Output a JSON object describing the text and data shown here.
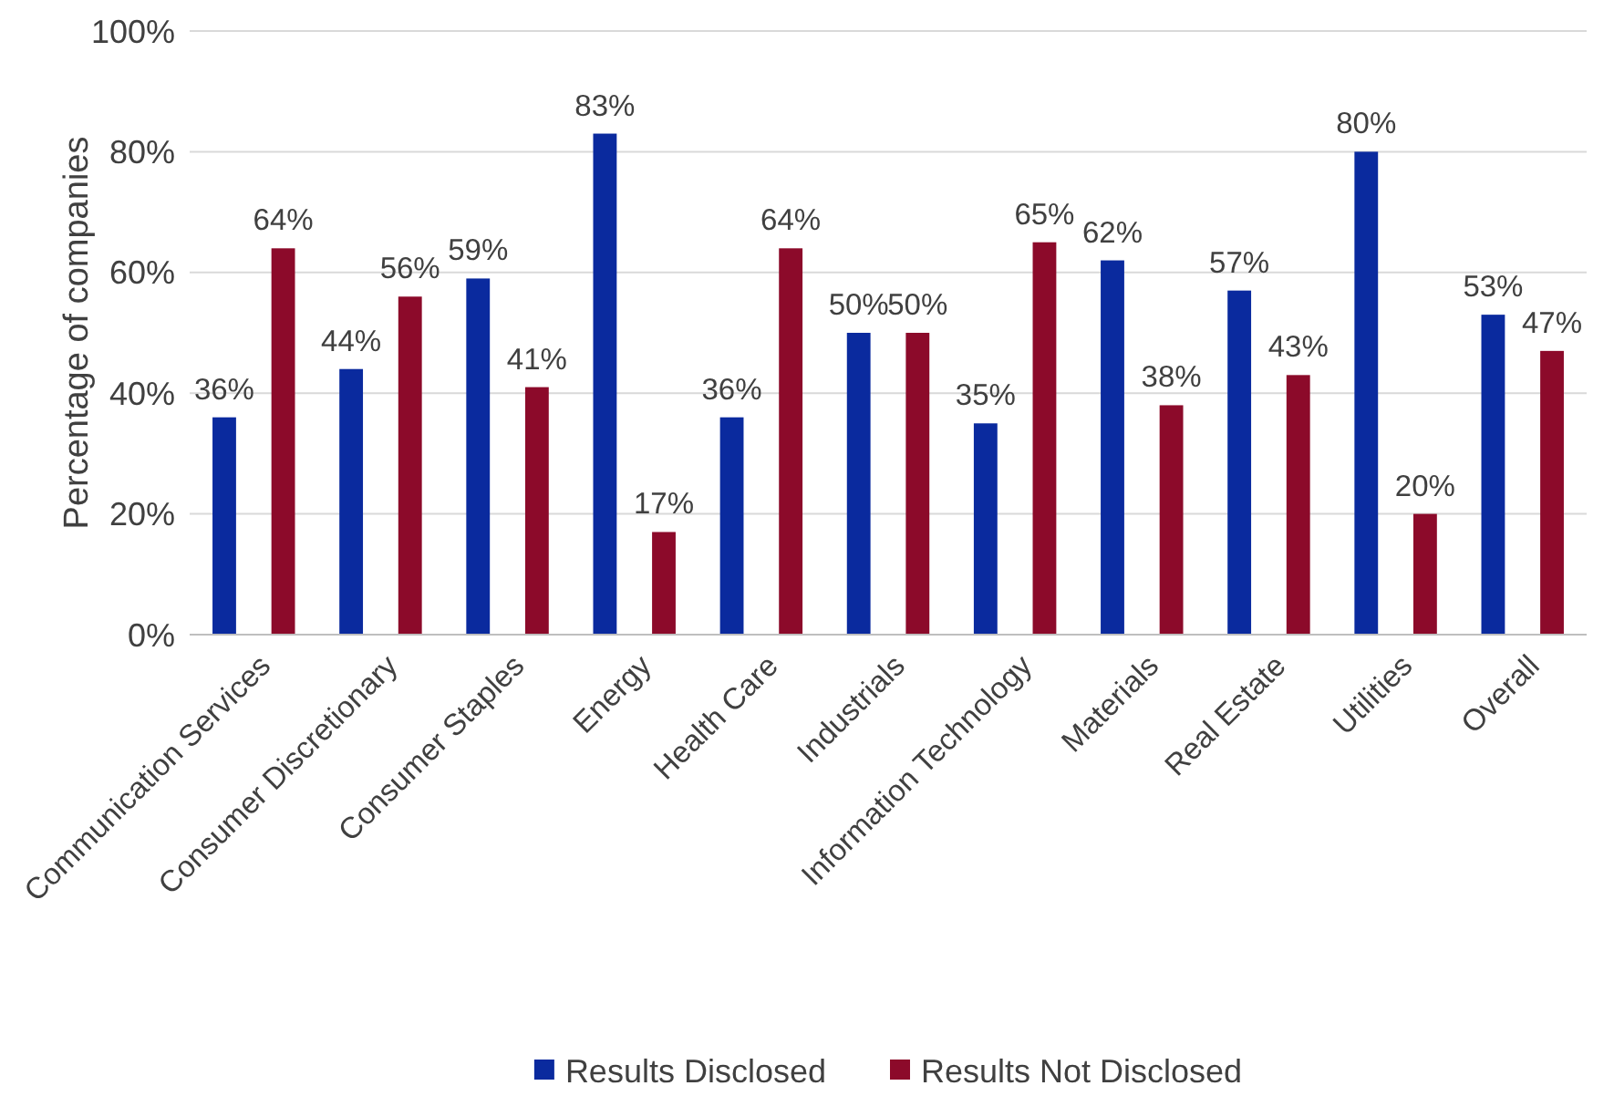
{
  "chart_data": {
    "type": "bar",
    "ylabel": "Percentage of companies",
    "categories": [
      "Communication Services",
      "Consumer Discretionary",
      "Consumer Staples",
      "Energy",
      "Health Care",
      "Industrials",
      "Information Technology",
      "Materials",
      "Real Estate",
      "Utilities",
      "Overall"
    ],
    "series": [
      {
        "name": "Results Disclosed",
        "color": "#0a2a9e",
        "values": [
          36,
          44,
          59,
          83,
          36,
          50,
          35,
          62,
          57,
          80,
          53
        ],
        "value_labels": [
          "36%",
          "44%",
          "59%",
          "83%",
          "36%",
          "50%",
          "35%",
          "62%",
          "57%",
          "80%",
          "53%"
        ]
      },
      {
        "name": "Results Not Disclosed",
        "color": "#8c0a2a",
        "values": [
          64,
          56,
          41,
          17,
          64,
          50,
          65,
          38,
          43,
          20,
          47
        ],
        "value_labels": [
          "64%",
          "56%",
          "41%",
          "17%",
          "64%",
          "50%",
          "65%",
          "38%",
          "43%",
          "20%",
          "47%"
        ]
      }
    ],
    "ylim": [
      0,
      100
    ],
    "yticks": [
      {
        "value": 0,
        "label": "0%"
      },
      {
        "value": 20,
        "label": "20%"
      },
      {
        "value": 40,
        "label": "40%"
      },
      {
        "value": 60,
        "label": "60%"
      },
      {
        "value": 80,
        "label": "80%"
      },
      {
        "value": 100,
        "label": "100%"
      }
    ],
    "grid": "y",
    "legend": "bottom"
  }
}
